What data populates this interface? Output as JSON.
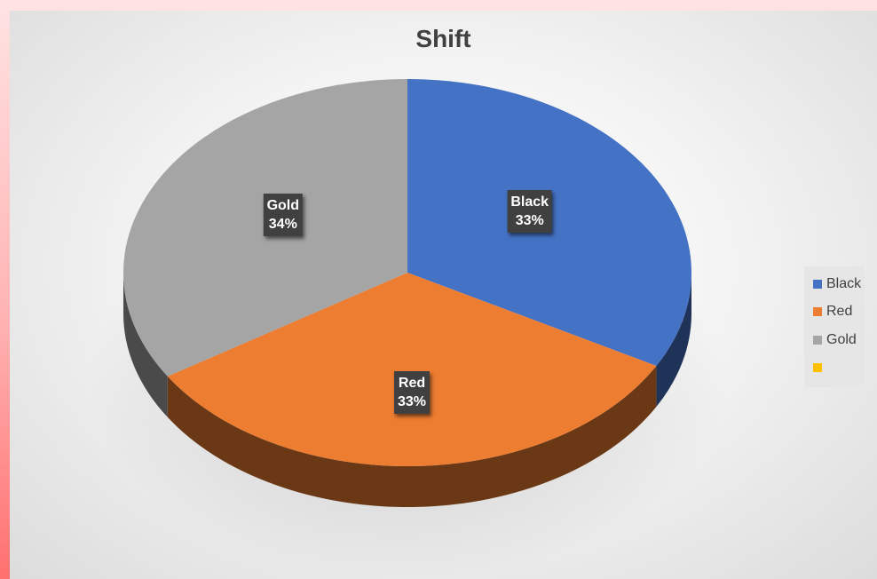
{
  "chart_data": {
    "type": "pie",
    "title": "Shift",
    "categories": [
      "Black",
      "Red",
      "Gold",
      ""
    ],
    "values": [
      33,
      33,
      34,
      0
    ],
    "value_format": "percent",
    "data_labels": [
      {
        "category": "Black",
        "text": "33%"
      },
      {
        "category": "Red",
        "text": "33%"
      },
      {
        "category": "Gold",
        "text": "34%"
      }
    ],
    "colors": [
      "#4472C4",
      "#ED7D31",
      "#A5A5A5",
      "#FFC000"
    ],
    "legend": {
      "position": "right",
      "entries": [
        "Black",
        "Red",
        "Gold",
        ""
      ]
    },
    "style": "3d-pie"
  },
  "colors": {
    "page_background": "#ff8080",
    "chart_background": "#f2f2f2",
    "title": "#404040",
    "label_background": "#404040",
    "label_text": "#ffffff"
  }
}
